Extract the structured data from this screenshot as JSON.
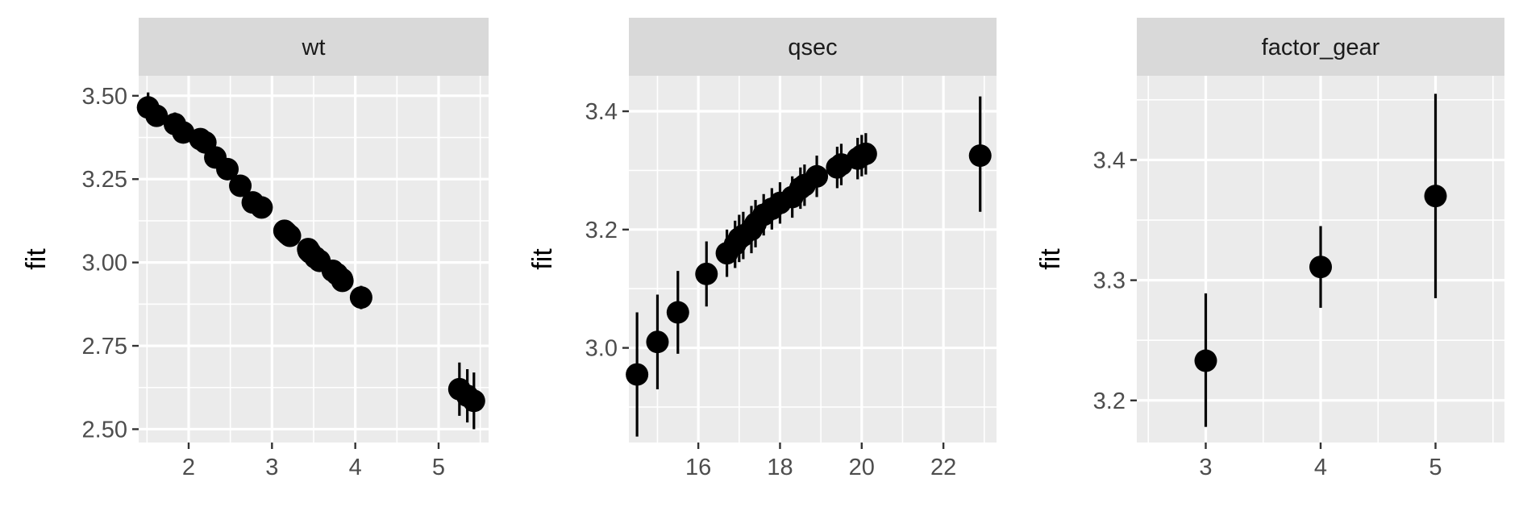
{
  "chart_data": [
    {
      "type": "scatter",
      "facet": "wt",
      "ylabel": "fit",
      "xlabel": "",
      "xlim": [
        1.4,
        5.6
      ],
      "ylim": [
        2.46,
        3.56
      ],
      "xticks": [
        2,
        3,
        4,
        5
      ],
      "xtick_labels": [
        "2",
        "3",
        "4",
        "5"
      ],
      "yticks": [
        2.5,
        2.75,
        3.0,
        3.25,
        3.5
      ],
      "ytick_labels": [
        "2.50",
        "2.75",
        "3.00",
        "3.25",
        "3.50"
      ],
      "points": [
        {
          "x": 1.513,
          "y": 3.465,
          "lo": 3.43,
          "hi": 3.51
        },
        {
          "x": 1.615,
          "y": 3.44,
          "lo": 3.41,
          "hi": 3.48
        },
        {
          "x": 1.835,
          "y": 3.415,
          "lo": 3.38,
          "hi": 3.45
        },
        {
          "x": 1.935,
          "y": 3.39,
          "lo": 3.36,
          "hi": 3.42
        },
        {
          "x": 2.14,
          "y": 3.37,
          "lo": 3.34,
          "hi": 3.4
        },
        {
          "x": 2.2,
          "y": 3.36,
          "lo": 3.33,
          "hi": 3.39
        },
        {
          "x": 2.32,
          "y": 3.315,
          "lo": 3.29,
          "hi": 3.34
        },
        {
          "x": 2.465,
          "y": 3.28,
          "lo": 3.26,
          "hi": 3.3
        },
        {
          "x": 2.62,
          "y": 3.23,
          "lo": 3.21,
          "hi": 3.25
        },
        {
          "x": 2.77,
          "y": 3.18,
          "lo": 3.16,
          "hi": 3.2
        },
        {
          "x": 2.875,
          "y": 3.165,
          "lo": 3.145,
          "hi": 3.185
        },
        {
          "x": 3.15,
          "y": 3.095,
          "lo": 3.075,
          "hi": 3.115
        },
        {
          "x": 3.17,
          "y": 3.09,
          "lo": 3.07,
          "hi": 3.11
        },
        {
          "x": 3.19,
          "y": 3.085,
          "lo": 3.065,
          "hi": 3.105
        },
        {
          "x": 3.215,
          "y": 3.08,
          "lo": 3.06,
          "hi": 3.1
        },
        {
          "x": 3.435,
          "y": 3.04,
          "lo": 3.02,
          "hi": 3.06
        },
        {
          "x": 3.44,
          "y": 3.035,
          "lo": 3.015,
          "hi": 3.055
        },
        {
          "x": 3.46,
          "y": 3.03,
          "lo": 3.01,
          "hi": 3.05
        },
        {
          "x": 3.52,
          "y": 3.015,
          "lo": 2.995,
          "hi": 3.035
        },
        {
          "x": 3.57,
          "y": 3.005,
          "lo": 2.985,
          "hi": 3.025
        },
        {
          "x": 3.73,
          "y": 2.975,
          "lo": 2.955,
          "hi": 2.995
        },
        {
          "x": 3.78,
          "y": 2.965,
          "lo": 2.945,
          "hi": 2.985
        },
        {
          "x": 3.84,
          "y": 2.95,
          "lo": 2.925,
          "hi": 2.975
        },
        {
          "x": 3.845,
          "y": 2.945,
          "lo": 2.92,
          "hi": 2.97
        },
        {
          "x": 4.07,
          "y": 2.895,
          "lo": 2.86,
          "hi": 2.93
        },
        {
          "x": 5.25,
          "y": 2.62,
          "lo": 2.54,
          "hi": 2.7
        },
        {
          "x": 5.345,
          "y": 2.6,
          "lo": 2.52,
          "hi": 2.68
        },
        {
          "x": 5.424,
          "y": 2.585,
          "lo": 2.5,
          "hi": 2.67
        }
      ]
    },
    {
      "type": "scatter",
      "facet": "qsec",
      "ylabel": "fit",
      "xlabel": "",
      "xlim": [
        14.3,
        23.3
      ],
      "ylim": [
        2.84,
        3.46
      ],
      "xticks": [
        16,
        18,
        20,
        22
      ],
      "xtick_labels": [
        "16",
        "18",
        "20",
        "22"
      ],
      "yticks": [
        3.0,
        3.2,
        3.4
      ],
      "ytick_labels": [
        "3.0",
        "3.2",
        "3.4"
      ],
      "points": [
        {
          "x": 14.5,
          "y": 2.955,
          "lo": 2.85,
          "hi": 3.06
        },
        {
          "x": 15.0,
          "y": 3.01,
          "lo": 2.93,
          "hi": 3.09
        },
        {
          "x": 15.5,
          "y": 3.06,
          "lo": 2.99,
          "hi": 3.13
        },
        {
          "x": 16.2,
          "y": 3.125,
          "lo": 3.07,
          "hi": 3.18
        },
        {
          "x": 16.7,
          "y": 3.16,
          "lo": 3.12,
          "hi": 3.2
        },
        {
          "x": 16.9,
          "y": 3.175,
          "lo": 3.135,
          "hi": 3.215
        },
        {
          "x": 17.0,
          "y": 3.185,
          "lo": 3.145,
          "hi": 3.225
        },
        {
          "x": 17.1,
          "y": 3.19,
          "lo": 3.15,
          "hi": 3.23
        },
        {
          "x": 17.3,
          "y": 3.2,
          "lo": 3.16,
          "hi": 3.24
        },
        {
          "x": 17.4,
          "y": 3.21,
          "lo": 3.17,
          "hi": 3.25
        },
        {
          "x": 17.6,
          "y": 3.225,
          "lo": 3.19,
          "hi": 3.26
        },
        {
          "x": 17.8,
          "y": 3.235,
          "lo": 3.2,
          "hi": 3.27
        },
        {
          "x": 18.0,
          "y": 3.245,
          "lo": 3.21,
          "hi": 3.28
        },
        {
          "x": 18.3,
          "y": 3.255,
          "lo": 3.22,
          "hi": 3.29
        },
        {
          "x": 18.5,
          "y": 3.27,
          "lo": 3.235,
          "hi": 3.305
        },
        {
          "x": 18.6,
          "y": 3.275,
          "lo": 3.24,
          "hi": 3.31
        },
        {
          "x": 18.9,
          "y": 3.29,
          "lo": 3.255,
          "hi": 3.325
        },
        {
          "x": 19.4,
          "y": 3.305,
          "lo": 3.27,
          "hi": 3.34
        },
        {
          "x": 19.5,
          "y": 3.31,
          "lo": 3.275,
          "hi": 3.345
        },
        {
          "x": 19.9,
          "y": 3.32,
          "lo": 3.285,
          "hi": 3.355
        },
        {
          "x": 20.0,
          "y": 3.325,
          "lo": 3.29,
          "hi": 3.36
        },
        {
          "x": 20.1,
          "y": 3.328,
          "lo": 3.293,
          "hi": 3.363
        },
        {
          "x": 22.9,
          "y": 3.325,
          "lo": 3.23,
          "hi": 3.425
        }
      ]
    },
    {
      "type": "scatter",
      "facet": "factor_gear",
      "ylabel": "fit",
      "xlabel": "",
      "xlim": [
        2.4,
        5.6
      ],
      "ylim": [
        3.165,
        3.47
      ],
      "xticks": [
        3,
        4,
        5
      ],
      "xtick_labels": [
        "3",
        "4",
        "5"
      ],
      "yticks": [
        3.2,
        3.3,
        3.4
      ],
      "ytick_labels": [
        "3.2",
        "3.3",
        "3.4"
      ],
      "points": [
        {
          "x": 3,
          "y": 3.233,
          "lo": 3.178,
          "hi": 3.289
        },
        {
          "x": 4,
          "y": 3.311,
          "lo": 3.277,
          "hi": 3.345
        },
        {
          "x": 5,
          "y": 3.37,
          "lo": 3.285,
          "hi": 3.455
        }
      ]
    }
  ],
  "colors": {
    "panel_bg": "#ebebeb",
    "strip_bg": "#d9d9d9",
    "grid": "#ffffff",
    "points": "#000000"
  }
}
